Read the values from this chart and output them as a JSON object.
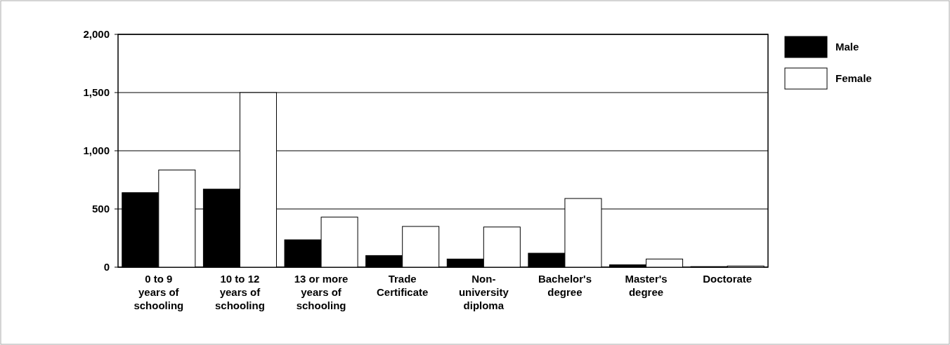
{
  "chart_data": {
    "type": "bar",
    "categories": [
      "0 to 9\nyears of\nschooling",
      "10 to 12\nyears of\nschooling",
      "13 or more\nyears of\nschooling",
      "Trade\nCertificate",
      "Non-\nuniversity\ndiploma",
      "Bachelor's\ndegree",
      "Master's\ndegree",
      "Doctorate"
    ],
    "series": [
      {
        "name": "Male",
        "color": "#000000",
        "values": [
          640,
          670,
          235,
          100,
          70,
          120,
          20,
          5
        ]
      },
      {
        "name": "Female",
        "color": "#ffffff",
        "values": [
          835,
          1500,
          430,
          350,
          345,
          590,
          70,
          10
        ]
      }
    ],
    "ylim": [
      0,
      2000
    ],
    "yticks": [
      0,
      {
        "value": 500,
        "label": "500"
      },
      {
        "value": 1000,
        "label": "1,000"
      },
      {
        "value": 1500,
        "label": "1,500"
      },
      {
        "value": 2000,
        "label": "2,000"
      }
    ],
    "grid": "y",
    "legend": "top right"
  }
}
